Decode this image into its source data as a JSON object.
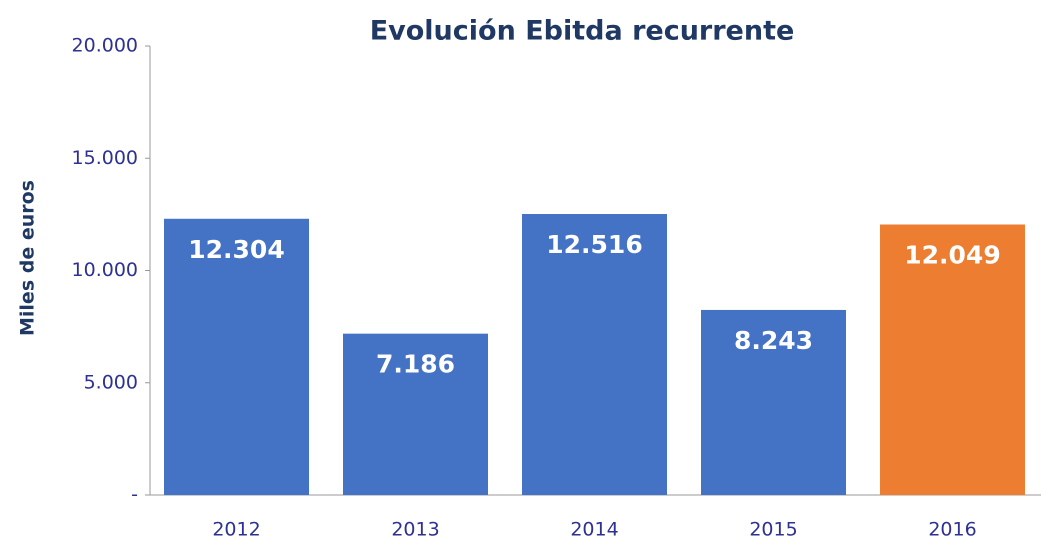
{
  "chart_data": {
    "type": "bar",
    "title": "Evolución Ebitda recurrente",
    "y_label": "Miles de euros",
    "categories": [
      "2012",
      "2013",
      "2014",
      "2015",
      "2016"
    ],
    "values": [
      12304,
      7186,
      12516,
      8243,
      12049
    ],
    "value_labels": [
      "12.304",
      "7.186",
      "12.516",
      "8.243",
      "12.049"
    ],
    "colors": [
      "#4472c4",
      "#4472c4",
      "#4472c4",
      "#4472c4",
      "#ed7d31"
    ],
    "ylim": [
      0,
      20000
    ],
    "yticks": [
      {
        "value": 0,
        "label": "-"
      },
      {
        "value": 5000,
        "label": "5.000"
      },
      {
        "value": 10000,
        "label": "10.000"
      },
      {
        "value": 15000,
        "label": "15.000"
      },
      {
        "value": 20000,
        "label": "20.000"
      }
    ],
    "grid": false
  }
}
